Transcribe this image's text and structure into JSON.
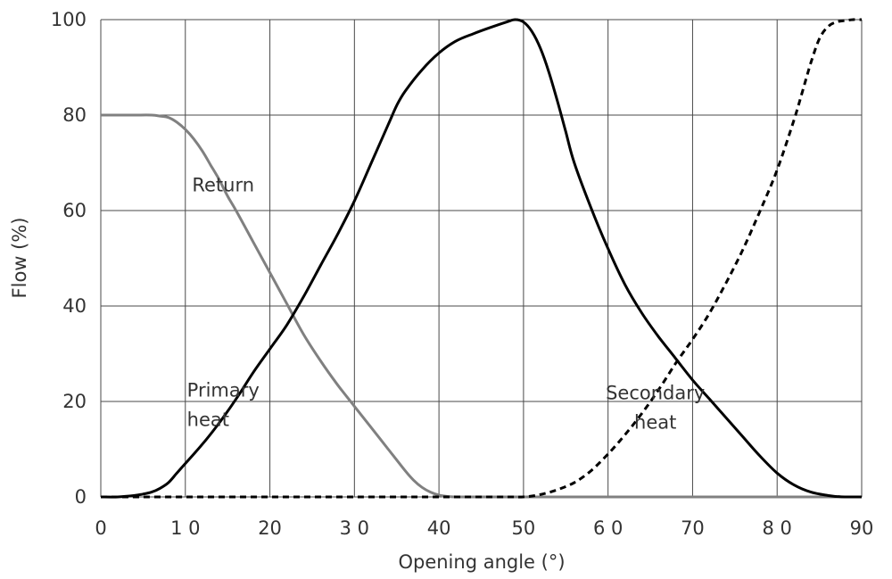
{
  "chart_data": {
    "type": "line",
    "title": "",
    "xlabel": "Opening angle (°)",
    "ylabel": "Flow (%)",
    "xlim": [
      0,
      90
    ],
    "ylim": [
      0,
      100
    ],
    "xticks": [
      {
        "value": 0,
        "label": "0"
      },
      {
        "value": 10,
        "label": "1 0"
      },
      {
        "value": 20,
        "label": "20"
      },
      {
        "value": 30,
        "label": "3 0"
      },
      {
        "value": 40,
        "label": "40"
      },
      {
        "value": 50,
        "label": "50"
      },
      {
        "value": 60,
        "label": "6 0"
      },
      {
        "value": 70,
        "label": "70"
      },
      {
        "value": 80,
        "label": "8 0"
      },
      {
        "value": 90,
        "label": "90"
      }
    ],
    "yticks": [
      {
        "value": 0,
        "label": "0"
      },
      {
        "value": 20,
        "label": "20"
      },
      {
        "value": 40,
        "label": "40"
      },
      {
        "value": 60,
        "label": "60"
      },
      {
        "value": 80,
        "label": "80"
      },
      {
        "value": 100,
        "label": "100"
      }
    ],
    "grid": true,
    "legend": "none",
    "series": [
      {
        "name": "Return",
        "color": "#808080",
        "dash": "solid",
        "x": [
          0,
          2,
          4,
          6,
          7,
          8,
          9,
          10,
          11,
          12,
          13,
          14,
          15,
          16,
          18,
          20,
          22,
          24,
          26,
          28,
          30,
          32,
          34,
          36,
          37,
          38,
          39,
          40,
          41,
          42,
          44,
          46,
          48,
          50,
          60,
          70,
          80,
          90
        ],
        "y": [
          80,
          80,
          80,
          80,
          79.8,
          79.5,
          78.5,
          77,
          75,
          72.5,
          69.5,
          66.5,
          63,
          60,
          53.5,
          47,
          40.5,
          34,
          28.5,
          23.5,
          19,
          14.5,
          10,
          5.5,
          3.5,
          2,
          1,
          0.4,
          0.1,
          0,
          0,
          0,
          0,
          0,
          0,
          0,
          0,
          0
        ]
      },
      {
        "name": "Primary heat",
        "color": "#000000",
        "dash": "solid",
        "x": [
          0,
          2,
          4,
          5,
          6,
          7,
          8,
          9,
          10,
          12,
          14,
          16,
          18,
          20,
          22,
          24,
          26,
          28,
          30,
          32,
          34,
          35,
          36,
          38,
          40,
          42,
          44,
          46,
          48,
          49,
          50,
          51,
          52,
          53,
          54,
          55,
          56,
          58,
          60,
          62,
          64,
          66,
          68,
          70,
          72,
          74,
          76,
          78,
          80,
          82,
          84,
          86,
          87,
          88,
          89,
          90
        ],
        "y": [
          0,
          0,
          0.3,
          0.6,
          1,
          1.8,
          3,
          5,
          7,
          11,
          15.5,
          20.5,
          26,
          31,
          36,
          42,
          48.5,
          55,
          62,
          70,
          78,
          82,
          85,
          89.5,
          93,
          95.5,
          97,
          98.3,
          99.5,
          100,
          99.5,
          97.5,
          94,
          89,
          83,
          76.5,
          70,
          60.5,
          52,
          44.5,
          38.5,
          33.5,
          29,
          24.5,
          20.5,
          16.5,
          12.5,
          8.5,
          5,
          2.5,
          1,
          0.3,
          0.1,
          0,
          0,
          0
        ]
      },
      {
        "name": "Secondary heat",
        "color": "#000000",
        "dash": "dashed",
        "x": [
          0,
          10,
          20,
          30,
          40,
          48,
          50,
          52,
          54,
          56,
          58,
          60,
          62,
          64,
          66,
          68,
          70,
          72,
          74,
          76,
          78,
          80,
          82,
          83,
          84,
          85,
          86,
          87,
          88,
          89,
          90
        ],
        "y": [
          0,
          0,
          0,
          0,
          0,
          0,
          0,
          0.5,
          1.5,
          3,
          5.5,
          9,
          13,
          17.5,
          22.5,
          28,
          33,
          38.5,
          45,
          52,
          60,
          68.5,
          79,
          85,
          91,
          96,
          98.5,
          99.5,
          99.8,
          100,
          100
        ]
      }
    ],
    "annotations": [
      {
        "id": "return",
        "lines": [
          "Return"
        ],
        "x": 10.8,
        "y": 64
      },
      {
        "id": "primary",
        "lines": [
          "Primary",
          "heat"
        ],
        "x": 10.2,
        "y": 21
      },
      {
        "id": "secondary",
        "lines": [
          "Secondary",
          "heat"
        ],
        "x": 56.1,
        "y": 20.5
      }
    ]
  }
}
